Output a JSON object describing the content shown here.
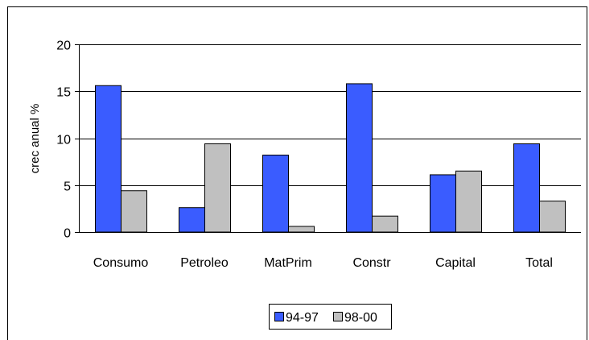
{
  "chart_data": {
    "type": "bar",
    "categories": [
      "Consumo",
      "Petroleo",
      "MatPrim",
      "Constr",
      "Capital",
      "Total"
    ],
    "series": [
      {
        "name": "94-97",
        "color": "#3a5cff",
        "values": [
          15.6,
          2.6,
          8.2,
          15.8,
          6.1,
          9.4
        ]
      },
      {
        "name": "98-00",
        "color": "#c0c0c0",
        "values": [
          4.4,
          9.4,
          0.6,
          1.7,
          6.5,
          3.3
        ]
      }
    ],
    "ylabel": "crec anual %",
    "ylim": [
      0,
      20
    ],
    "yticks": [
      0,
      5,
      10,
      15,
      20
    ],
    "grid": true,
    "legend_position": "bottom-center"
  }
}
